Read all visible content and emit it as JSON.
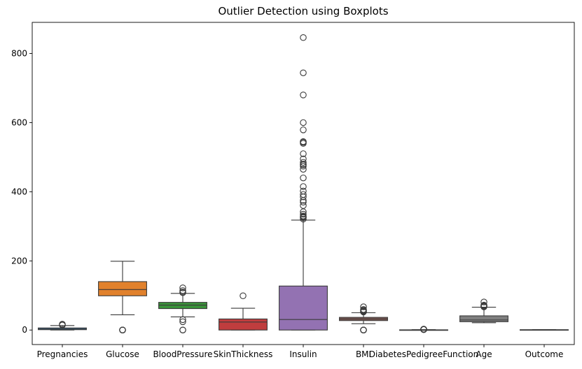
{
  "chart_data": {
    "type": "boxplot",
    "title": "Outlier Detection using Boxplots",
    "xlabel": "",
    "ylabel": "",
    "ylim": [
      -42,
      890
    ],
    "yticks": [
      0,
      200,
      400,
      600,
      800
    ],
    "grid": false,
    "categories": [
      "Pregnancies",
      "Glucose",
      "BloodPressure",
      "SkinThickness",
      "Insulin",
      "BMI",
      "DiabetesPedigreeFunction",
      "Age",
      "Outcome"
    ],
    "series": [
      {
        "color": "#3274a1",
        "q1": 1,
        "median": 3,
        "q3": 6,
        "whisker_low": 0,
        "whisker_high": 13,
        "outliers": [
          14,
          15,
          17
        ]
      },
      {
        "color": "#e1812c",
        "q1": 99,
        "median": 117,
        "q3": 140,
        "whisker_low": 44,
        "whisker_high": 199,
        "outliers": [
          0,
          0,
          0,
          0,
          0
        ]
      },
      {
        "color": "#3a923a",
        "q1": 62,
        "median": 72,
        "q3": 80,
        "whisker_low": 38,
        "whisker_high": 106,
        "outliers": [
          0,
          0,
          24,
          30,
          108,
          110,
          114,
          122
        ]
      },
      {
        "color": "#c03d3e",
        "q1": 0,
        "median": 23,
        "q3": 32,
        "whisker_low": 0,
        "whisker_high": 63,
        "outliers": [
          99
        ]
      },
      {
        "color": "#9372b2",
        "q1": 0,
        "median": 30.5,
        "q3": 127.25,
        "whisker_low": 0,
        "whisker_high": 318,
        "outliers": [
          321,
          325,
          326,
          328,
          330,
          335,
          342,
          360,
          370,
          375,
          385,
          392,
          402,
          415,
          440,
          465,
          474,
          478,
          480,
          485,
          495,
          510,
          540,
          543,
          545,
          579,
          600,
          680,
          744,
          846
        ]
      },
      {
        "color": "#845b53",
        "q1": 27.3,
        "median": 32,
        "q3": 36.6,
        "whisker_low": 18.2,
        "whisker_high": 50,
        "outliers": [
          0,
          0,
          0,
          0,
          0,
          52.3,
          53.2,
          55,
          57.3,
          59.4,
          67.1
        ]
      },
      {
        "color": "#d684bd",
        "q1": 0.24,
        "median": 0.37,
        "q3": 0.63,
        "whisker_low": 0.08,
        "whisker_high": 1.19,
        "outliers": [
          1.3,
          1.4,
          1.6,
          1.9,
          2.1,
          2.3,
          2.42
        ]
      },
      {
        "color": "#7f7f7f",
        "q1": 24,
        "median": 29,
        "q3": 41,
        "whisker_low": 21,
        "whisker_high": 66,
        "outliers": [
          67,
          68,
          69,
          70,
          72,
          81
        ]
      },
      {
        "color": "#a9aa35",
        "q1": 0,
        "median": 0,
        "q3": 1,
        "whisker_low": 0,
        "whisker_high": 1,
        "outliers": []
      }
    ]
  }
}
